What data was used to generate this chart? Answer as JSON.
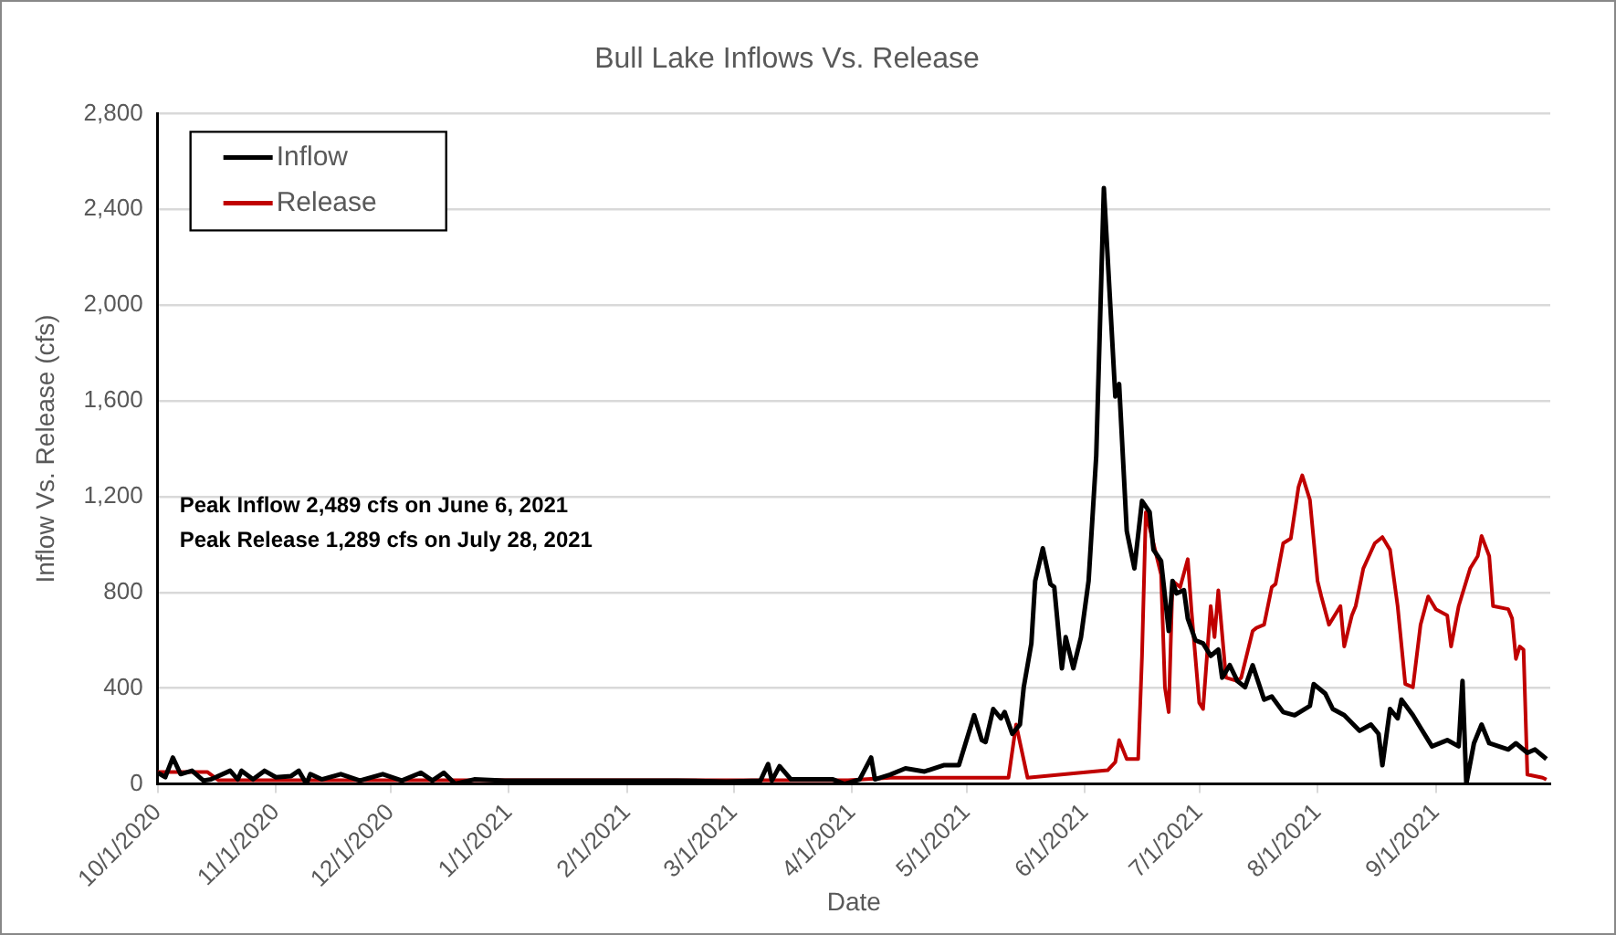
{
  "chart_data": {
    "type": "line",
    "title": "Bull Lake Inflows Vs. Release",
    "xlabel": "Date",
    "ylabel": "Inflow Vs. Release (cfs)",
    "xlim": [
      "2020-10-01",
      "2021-10-01"
    ],
    "xticks": [
      {
        "value": "2020-10-01",
        "label": "10/1/2020"
      },
      {
        "value": "2020-11-01",
        "label": "11/1/2020"
      },
      {
        "value": "2020-12-01",
        "label": "12/1/2020"
      },
      {
        "value": "2021-01-01",
        "label": "1/1/2021"
      },
      {
        "value": "2021-02-01",
        "label": "2/1/2021"
      },
      {
        "value": "2021-03-01",
        "label": "3/1/2021"
      },
      {
        "value": "2021-04-01",
        "label": "4/1/2021"
      },
      {
        "value": "2021-05-01",
        "label": "5/1/2021"
      },
      {
        "value": "2021-06-01",
        "label": "6/1/2021"
      },
      {
        "value": "2021-07-01",
        "label": "7/1/2021"
      },
      {
        "value": "2021-08-01",
        "label": "8/1/2021"
      },
      {
        "value": "2021-09-01",
        "label": "9/1/2021"
      }
    ],
    "ylim": [
      0,
      2800
    ],
    "yticks": [
      0,
      {
        "value": 400,
        "label": "400"
      },
      {
        "value": 800,
        "label": "800"
      },
      {
        "value": 1200,
        "label": "1,200"
      },
      {
        "value": 1600,
        "label": "1,600"
      },
      {
        "value": 2000,
        "label": "2,000"
      },
      {
        "value": 2400,
        "label": "2,400"
      },
      {
        "value": 2800,
        "label": "2,800"
      }
    ],
    "grid": "y",
    "legend": "top left",
    "marker": "none",
    "line_style": "solid",
    "annotations": [
      "Peak Inflow 2,489 cfs on June 6, 2021",
      "Peak Release 1,289 cfs on July 28, 2021"
    ],
    "series": [
      {
        "name": "Inflow",
        "color": "#000000",
        "x": [
          "2020-10-01",
          "2020-10-03",
          "2020-10-05",
          "2020-10-07",
          "2020-10-10",
          "2020-10-13",
          "2020-10-15",
          "2020-10-20",
          "2020-10-22",
          "2020-10-23",
          "2020-10-26",
          "2020-10-29",
          "2020-11-01",
          "2020-11-05",
          "2020-11-07",
          "2020-11-09",
          "2020-11-10",
          "2020-11-13",
          "2020-11-18",
          "2020-11-23",
          "2020-11-29",
          "2020-12-04",
          "2020-12-09",
          "2020-12-12",
          "2020-12-15",
          "2020-12-18",
          "2020-12-23",
          "2020-12-31",
          "2021-01-09",
          "2021-01-19",
          "2021-01-29",
          "2021-02-14",
          "2021-02-27",
          "2021-03-08",
          "2021-03-10",
          "2021-03-11",
          "2021-03-13",
          "2021-03-16",
          "2021-03-22",
          "2021-03-27",
          "2021-03-30",
          "2021-04-03",
          "2021-04-06",
          "2021-04-07",
          "2021-04-11",
          "2021-04-15",
          "2021-04-20",
          "2021-04-25",
          "2021-04-29",
          "2021-05-03",
          "2021-05-05",
          "2021-05-06",
          "2021-05-08",
          "2021-05-10",
          "2021-05-11",
          "2021-05-13",
          "2021-05-15",
          "2021-05-16",
          "2021-05-18",
          "2021-05-19",
          "2021-05-21",
          "2021-05-23",
          "2021-05-24",
          "2021-05-26",
          "2021-05-27",
          "2021-05-29",
          "2021-05-31",
          "2021-06-02",
          "2021-06-04",
          "2021-06-06",
          "2021-06-09",
          "2021-06-10",
          "2021-06-12",
          "2021-06-14",
          "2021-06-16",
          "2021-06-18",
          "2021-06-19",
          "2021-06-21",
          "2021-06-23",
          "2021-06-24",
          "2021-06-25",
          "2021-06-27",
          "2021-06-28",
          "2021-06-30",
          "2021-07-02",
          "2021-07-04",
          "2021-07-06",
          "2021-07-07",
          "2021-07-09",
          "2021-07-11",
          "2021-07-13",
          "2021-07-15",
          "2021-07-18",
          "2021-07-20",
          "2021-07-23",
          "2021-07-26",
          "2021-07-30",
          "2021-07-31",
          "2021-08-03",
          "2021-08-05",
          "2021-08-08",
          "2021-08-12",
          "2021-08-15",
          "2021-08-17",
          "2021-08-18",
          "2021-08-20",
          "2021-08-22",
          "2021-08-23",
          "2021-08-26",
          "2021-08-28",
          "2021-08-31",
          "2021-09-04",
          "2021-09-07",
          "2021-09-08",
          "2021-09-09",
          "2021-09-11",
          "2021-09-13",
          "2021-09-15",
          "2021-09-20",
          "2021-09-22",
          "2021-09-25",
          "2021-09-27",
          "2021-09-30"
        ],
        "values": [
          47,
          28,
          110,
          41,
          55,
          14,
          19,
          55,
          19,
          55,
          19,
          55,
          28,
          33,
          55,
          0,
          41,
          19,
          41,
          14,
          41,
          14,
          47,
          14,
          47,
          0,
          19,
          14,
          14,
          14,
          14,
          14,
          10,
          14,
          83,
          14,
          74,
          19,
          19,
          19,
          0,
          19,
          110,
          19,
          39,
          65,
          52,
          78,
          78,
          287,
          183,
          175,
          313,
          274,
          300,
          209,
          248,
          404,
          587,
          848,
          984,
          835,
          822,
          483,
          613,
          483,
          613,
          848,
          1370,
          2489,
          1618,
          1670,
          1057,
          900,
          1182,
          1135,
          978,
          931,
          639,
          848,
          796,
          809,
          691,
          600,
          587,
          535,
          561,
          444,
          496,
          430,
          404,
          496,
          352,
          365,
          300,
          287,
          326,
          417,
          378,
          313,
          287,
          222,
          248,
          209,
          78,
          313,
          274,
          352,
          287,
          235,
          157,
          183,
          157,
          430,
          0,
          170,
          248,
          170,
          144,
          170,
          130,
          144,
          104
        ]
      },
      {
        "name": "Release",
        "color": "#c00000",
        "x": [
          "2020-10-01",
          "2020-10-14",
          "2020-10-17",
          "2021-03-31",
          "2021-04-11",
          "2021-05-12",
          "2021-05-14",
          "2021-05-17",
          "2021-05-29",
          "2021-06-07",
          "2021-06-09",
          "2021-06-10",
          "2021-06-12",
          "2021-06-15",
          "2021-06-16",
          "2021-06-17",
          "2021-06-19",
          "2021-06-21",
          "2021-06-22",
          "2021-06-23",
          "2021-06-24",
          "2021-06-26",
          "2021-06-28",
          "2021-06-29",
          "2021-07-01",
          "2021-07-02",
          "2021-07-04",
          "2021-07-05",
          "2021-07-06",
          "2021-07-08",
          "2021-07-11",
          "2021-07-12",
          "2021-07-15",
          "2021-07-16",
          "2021-07-18",
          "2021-07-20",
          "2021-07-21",
          "2021-07-23",
          "2021-07-25",
          "2021-07-27",
          "2021-07-28",
          "2021-07-30",
          "2021-08-01",
          "2021-08-02",
          "2021-08-04",
          "2021-08-07",
          "2021-08-08",
          "2021-08-10",
          "2021-08-11",
          "2021-08-13",
          "2021-08-16",
          "2021-08-18",
          "2021-08-20",
          "2021-08-22",
          "2021-08-24",
          "2021-08-26",
          "2021-08-28",
          "2021-08-30",
          "2021-09-01",
          "2021-09-04",
          "2021-09-05",
          "2021-09-07",
          "2021-09-10",
          "2021-09-12",
          "2021-09-13",
          "2021-09-15",
          "2021-09-16",
          "2021-09-20",
          "2021-09-21",
          "2021-09-22",
          "2021-09-23",
          "2021-09-24",
          "2021-09-25",
          "2021-09-29",
          "2021-09-30"
        ],
        "values": [
          50,
          50,
          15,
          15,
          26,
          26,
          248,
          26,
          44,
          57,
          91,
          183,
          104,
          104,
          535,
          1135,
          1005,
          874,
          404,
          300,
          848,
          822,
          939,
          717,
          339,
          313,
          743,
          613,
          809,
          444,
          430,
          444,
          639,
          652,
          665,
          822,
          835,
          1005,
          1025,
          1239,
          1289,
          1187,
          848,
          783,
          665,
          743,
          574,
          704,
          743,
          900,
          1005,
          1031,
          978,
          743,
          417,
          404,
          665,
          783,
          730,
          704,
          574,
          743,
          900,
          952,
          1036,
          952,
          743,
          730,
          691,
          522,
          574,
          561,
          39,
          26,
          18
        ]
      }
    ]
  }
}
